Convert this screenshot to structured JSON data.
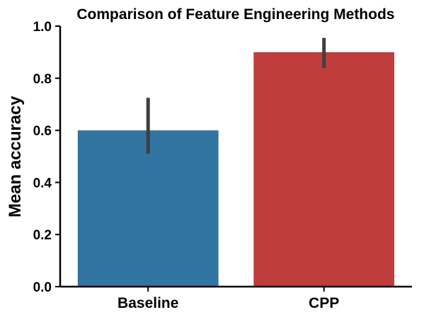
{
  "chart_data": {
    "type": "bar",
    "title": "Comparison of Feature Engineering Methods",
    "xlabel": "",
    "ylabel": "Mean accuracy",
    "ylim": [
      0,
      1.0
    ],
    "yticks": [
      "0.0",
      "0.2",
      "0.4",
      "0.6",
      "0.8",
      "1.0"
    ],
    "categories": [
      "Baseline",
      "CPP"
    ],
    "values": [
      0.6,
      0.9
    ],
    "error_low": [
      0.51,
      0.84
    ],
    "error_high": [
      0.725,
      0.955
    ],
    "colors": [
      "#3274a1",
      "#c03d3e"
    ],
    "error_color": "#3f3f3f",
    "grid": false,
    "legend": "none"
  }
}
